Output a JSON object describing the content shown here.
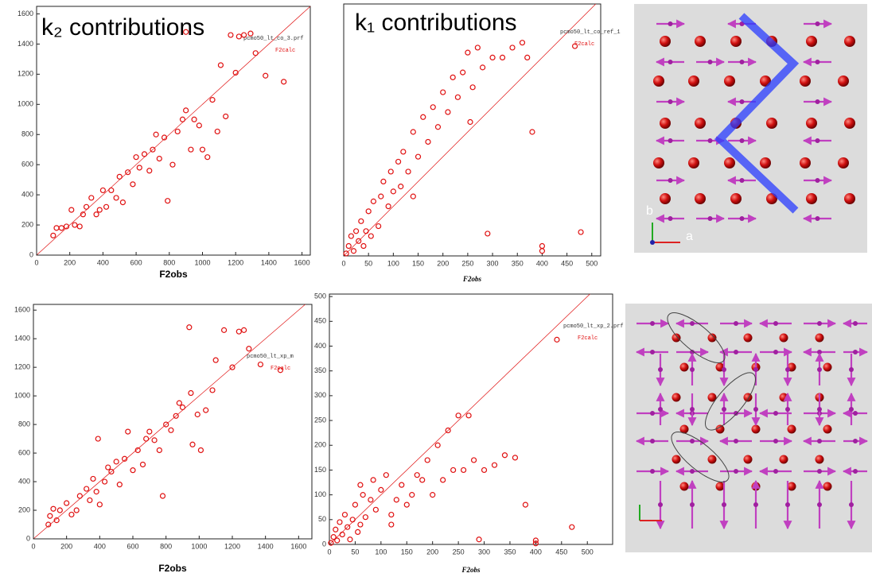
{
  "chart_data": [
    {
      "type": "scatter",
      "title": "k₂ contributions",
      "xlabel": "F2obs",
      "annotation": "pcmo50_lt_co_3.prf",
      "series": [
        {
          "name": "F2calc",
          "color": "#e01010",
          "x": [
            100,
            120,
            150,
            180,
            210,
            230,
            260,
            280,
            300,
            330,
            360,
            380,
            400,
            420,
            450,
            480,
            500,
            520,
            550,
            580,
            600,
            620,
            650,
            680,
            700,
            720,
            740,
            770,
            790,
            820,
            850,
            880,
            900,
            930,
            950,
            980,
            1000,
            1030,
            1060,
            1090,
            1110,
            1140,
            1170,
            1200,
            1250,
            1290,
            1320,
            1380,
            1490,
            900,
            1220
          ],
          "values": [
            130,
            180,
            180,
            190,
            300,
            200,
            190,
            270,
            320,
            380,
            270,
            300,
            430,
            320,
            430,
            380,
            520,
            350,
            550,
            470,
            650,
            580,
            670,
            560,
            700,
            800,
            640,
            780,
            360,
            600,
            820,
            900,
            960,
            700,
            900,
            860,
            700,
            650,
            1030,
            820,
            1260,
            920,
            1460,
            1210,
            1460,
            1470,
            1340,
            1190,
            1150,
            1480,
            1450
          ]
        }
      ],
      "xlim": [
        0,
        1650
      ],
      "ylim": [
        0,
        1650
      ],
      "xticks": [
        0,
        200,
        400,
        600,
        800,
        1000,
        1200,
        1400,
        1600
      ],
      "yticks": [
        0,
        200,
        400,
        600,
        800,
        1000,
        1200,
        1400,
        1600
      ]
    },
    {
      "type": "scatter",
      "title": "k₁ contributions",
      "xlabel": "F2obs",
      "annotation": "pcmo50_lt_co_ref_1",
      "series": [
        {
          "name": "F2calc",
          "color": "#e01010",
          "x": [
            5,
            10,
            15,
            20,
            25,
            30,
            35,
            40,
            45,
            50,
            55,
            60,
            70,
            75,
            80,
            90,
            95,
            100,
            110,
            115,
            120,
            130,
            140,
            150,
            160,
            170,
            180,
            190,
            200,
            210,
            220,
            230,
            240,
            250,
            260,
            270,
            280,
            290,
            300,
            320,
            340,
            360,
            370,
            380,
            400,
            400,
            466,
            478,
            255,
            140
          ],
          "values": [
            5,
            20,
            40,
            10,
            50,
            30,
            70,
            20,
            50,
            90,
            40,
            110,
            60,
            120,
            150,
            100,
            170,
            130,
            190,
            140,
            210,
            170,
            250,
            200,
            280,
            230,
            300,
            260,
            330,
            290,
            360,
            320,
            370,
            410,
            340,
            420,
            380,
            45,
            400,
            400,
            420,
            430,
            400,
            250,
            20,
            10,
            423,
            48,
            270,
            120
          ]
        }
      ],
      "xlim": [
        0,
        518
      ],
      "ylim": [
        0,
        508
      ],
      "xticks": [
        0,
        50,
        100,
        150,
        200,
        250,
        300,
        350,
        400,
        450,
        500
      ]
    },
    {
      "type": "scatter",
      "xlabel": "F2obs",
      "annotation": "pcmo50_lt_xp_m",
      "series": [
        {
          "name": "F2calc",
          "color": "#e01010",
          "x": [
            90,
            100,
            120,
            140,
            160,
            200,
            230,
            260,
            280,
            320,
            340,
            360,
            380,
            390,
            400,
            430,
            450,
            470,
            500,
            520,
            550,
            570,
            600,
            630,
            660,
            680,
            700,
            730,
            760,
            780,
            800,
            830,
            860,
            880,
            900,
            940,
            960,
            990,
            1010,
            1040,
            1080,
            1100,
            1150,
            1200,
            1240,
            1270,
            1300,
            1370,
            1490,
            950
          ],
          "values": [
            100,
            160,
            210,
            130,
            200,
            250,
            170,
            200,
            300,
            350,
            270,
            420,
            330,
            700,
            240,
            400,
            500,
            470,
            540,
            380,
            560,
            750,
            480,
            620,
            520,
            700,
            750,
            690,
            620,
            300,
            800,
            760,
            860,
            950,
            920,
            1480,
            660,
            870,
            620,
            900,
            1040,
            1250,
            1460,
            1200,
            1450,
            1460,
            1330,
            1220,
            1180,
            1020
          ]
        }
      ],
      "xlim": [
        0,
        1680
      ],
      "ylim": [
        0,
        1640
      ],
      "xticks": [
        0,
        200,
        400,
        600,
        800,
        1000,
        1200,
        1400,
        1600
      ],
      "yticks": [
        0,
        200,
        400,
        600,
        800,
        1000,
        1200,
        1400,
        1600
      ]
    },
    {
      "type": "scatter",
      "xlabel": "F2obs",
      "annotation": "pcmo50_lt_xp_2.prf",
      "series": [
        {
          "name": "F2calc",
          "color": "#e01010",
          "x": [
            3,
            8,
            12,
            15,
            20,
            25,
            30,
            35,
            40,
            45,
            50,
            55,
            60,
            65,
            70,
            80,
            85,
            90,
            100,
            110,
            120,
            130,
            140,
            150,
            160,
            170,
            180,
            190,
            200,
            210,
            220,
            230,
            240,
            250,
            260,
            270,
            280,
            290,
            300,
            320,
            340,
            360,
            380,
            400,
            400,
            441,
            470,
            120,
            60
          ],
          "values": [
            3,
            15,
            30,
            8,
            45,
            20,
            60,
            35,
            10,
            50,
            80,
            25,
            40,
            100,
            55,
            90,
            130,
            70,
            110,
            140,
            60,
            90,
            120,
            80,
            100,
            140,
            130,
            170,
            100,
            200,
            130,
            230,
            150,
            260,
            150,
            260,
            170,
            10,
            150,
            160,
            180,
            175,
            80,
            8,
            2,
            413,
            35,
            40,
            120
          ]
        }
      ],
      "xlim": [
        0,
        549
      ],
      "ylim": [
        0,
        505
      ],
      "xticks": [
        0,
        50,
        100,
        150,
        200,
        250,
        300,
        350,
        400,
        450,
        500
      ],
      "yticks": [
        0,
        50,
        100,
        150,
        200,
        250,
        300,
        350,
        400,
        450,
        500
      ]
    }
  ],
  "structure": {
    "b_label": "b",
    "a_label": "a"
  }
}
